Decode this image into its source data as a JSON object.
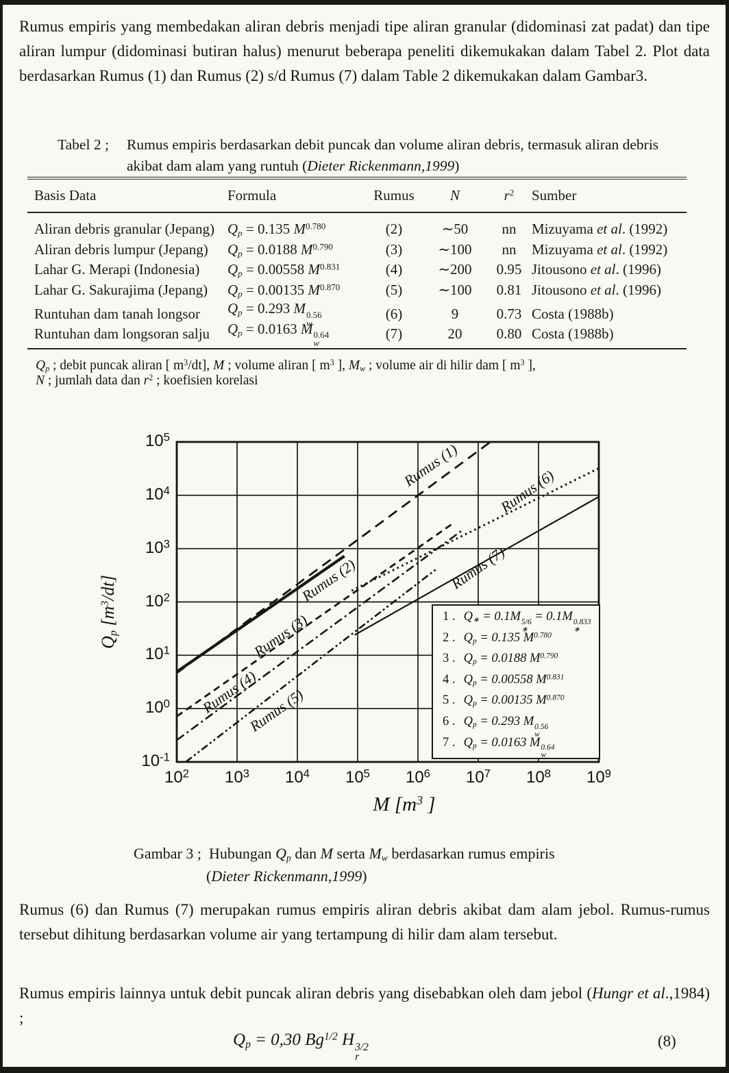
{
  "page": {
    "paragraph_1": "Rumus empiris yang membedakan aliran debris menjadi tipe aliran granular (didominasi zat padat) dan tipe aliran lumpur (didominasi butiran halus) menurut beberapa peneliti dikemukakan dalam Tabel 2.  Plot data berdasarkan Rumus (1) dan Rumus (2) s/d Rumus (7) dalam Table 2 dikemukakan dalam Gambar3.",
    "paragraph_2": "Rumus (6) dan Rumus (7) merupakan rumus empiris aliran debris akibat dam alam jebol. Rumus-rumus tersebut dihitung berdasarkan volume air yang tertampung di hilir dam alam tersebut.",
    "paragraph_3": "Rumus empiris lainnya untuk debit puncak aliran debris yang disebabkan oleh dam jebol (*Hungr et al*.,1984) ;",
    "equation_8": {
      "formula": "*Q*_{p} = 0,30 *Bg*^{1/2} *H*_{*r*}^{3/2}",
      "number": "(8)"
    }
  },
  "table": {
    "caption_label": "Tabel 2  ;",
    "caption_line1": "Rumus empiris berdasarkan debit puncak dan volume aliran debris, termasuk aliran debris",
    "caption_line2": "akibat dam alam yang runtuh (*Dieter Rickenmann,1999*)",
    "headers": [
      "Basis Data",
      "Formula",
      "Rumus",
      "*N*",
      "*r*^{2}",
      "Sumber"
    ],
    "rows": [
      {
        "basis": "Aliran debris granular (Jepang)",
        "formula": "*Q*_{*p*} = 0.135 *M*^{0.780}",
        "rumus": "(2)",
        "n": "∼50",
        "r2": "nn",
        "sumber": "Mizuyama *et al*. (1992)"
      },
      {
        "basis": "Aliran debris lumpur (Jepang)",
        "formula": "*Q*_{*p*} = 0.0188 *M*^{0.790}",
        "rumus": "(3)",
        "n": "∼100",
        "r2": "nn",
        "sumber": "Mizuyama *et al*. (1992)"
      },
      {
        "basis": "Lahar G. Merapi (Indonesia)",
        "formula": "*Q*_{*p*} = 0.00558 *M*^{0.831}",
        "rumus": "(4)",
        "n": "∼200",
        "r2": "0.95",
        "sumber": "Jitousono *et al*. (1996)"
      },
      {
        "basis": "Lahar G. Sakurajima (Jepang)",
        "formula": "*Q*_{*p*} = 0.00135 *M*^{0.870}",
        "rumus": "(5)",
        "n": "∼100",
        "r2": "0.81",
        "sumber": "Jitousono *et al*. (1996)"
      },
      {
        "basis": "Runtuhan dam  tanah longsor",
        "formula": "*Q*_{*p*} = 0.293 *M*_{*w*}^{0.56}",
        "rumus": "(6)",
        "n": "9",
        "r2": "0.73",
        "sumber": "Costa (1988b)"
      },
      {
        "basis": "Runtuhan dam longsoran salju",
        "formula": "*Q*_{*p*} = 0.0163 *M*_{*w*}^{0.64}",
        "rumus": "(7)",
        "n": "20",
        "r2": "0.80",
        "sumber": "Costa (1988b)"
      }
    ],
    "footnote_line1": "*Q*_{*p*} ; debit puncak aliran [ m^{3}/dt], *M* ; volume aliran [ m^{3} ], *M*_{*w*} ;  volume air di hilir dam [ m^{3} ],",
    "footnote_line2": "*N* ; jumlah  data dan *r*^{2} ;  koefisien korelasi"
  },
  "figure": {
    "caption_label": "Gambar 3 ;",
    "caption_line1": "Hubungan *Q*_{*p*} dan *M*  serta *M*_{*w*} berdasarkan rumus empiris",
    "caption_line2": "(*Dieter Rickenmann,1999*)"
  },
  "chart_data": {
    "type": "line",
    "title": "",
    "grid": true,
    "x_axis": {
      "label": "*M* [m^{3} ]",
      "scale": "log",
      "min": 100,
      "max": 1000000000,
      "ticks": [
        "10^{2}",
        "10^{3}",
        "10^{4}",
        "10^{5}",
        "10^{6}",
        "10^{7}",
        "10^{8}",
        "10^{9}"
      ]
    },
    "y_axis": {
      "label": "*Q*_{p}  [m^{3}/dt]",
      "scale": "log",
      "min": 0.1,
      "max": 100000,
      "ticks": [
        "10^{5}",
        "10^{4}",
        "10^{3}",
        "10^{2}",
        "10^{1}",
        "10^{0}",
        "10^{-1}"
      ]
    },
    "series": [
      {
        "name": "Rumus (2)",
        "coef": 0.135,
        "exponent": 0.78,
        "log_x_range": [
          2,
          4.78
        ],
        "style": "solid-thick",
        "label_log_pos": [
          4.52,
          2.36
        ],
        "points": [
          {
            "M": 100,
            "Q": 4.9
          },
          {
            "M": 60000,
            "Q": 722
          }
        ]
      },
      {
        "name": "Rumus (3)",
        "coef": 0.0188,
        "exponent": 0.79,
        "log_x_range": [
          2,
          6.6
        ],
        "style": "dash",
        "label_log_pos": [
          3.73,
          1.33
        ],
        "points": [
          {
            "M": 100,
            "Q": 0.72
          },
          {
            "M": 4000000,
            "Q": 3080
          }
        ]
      },
      {
        "name": "Rumus (4)",
        "coef": 0.00558,
        "exponent": 0.831,
        "log_x_range": [
          2,
          6.75
        ],
        "style": "dash-dot",
        "label_log_pos": [
          2.88,
          0.27
        ],
        "points": [
          {
            "M": 100,
            "Q": 0.26
          },
          {
            "M": 5600000,
            "Q": 2270
          }
        ]
      },
      {
        "name": "Rumus (5)",
        "coef": 0.00135,
        "exponent": 0.87,
        "log_x_range": [
          2.15,
          6.3
        ],
        "style": "dash-dot-dot",
        "label_log_pos": [
          3.66,
          -0.08
        ],
        "points": [
          {
            "M": 140,
            "Q": 0.1
          },
          {
            "M": 2000000,
            "Q": 409
          }
        ]
      },
      {
        "name": "Rumus (6)",
        "coef": 0.293,
        "exponent": 0.56,
        "log_x_range": [
          4.9,
          9
        ],
        "style": "dotted",
        "label_log_pos": [
          7.82,
          4.03
        ],
        "points": [
          {
            "M": 79000,
            "Q": 163
          },
          {
            "M": 1000000000,
            "Q": 32100
          }
        ]
      },
      {
        "name": "Rumus (7)",
        "coef": 0.0163,
        "exponent": 0.64,
        "log_x_range": [
          4.95,
          9
        ],
        "style": "solid",
        "label_log_pos": [
          7.0,
          2.6
        ],
        "points": [
          {
            "M": 89000,
            "Q": 24
          },
          {
            "M": 1000000000,
            "Q": 9380
          }
        ]
      },
      {
        "name": "Rumus (1)",
        "coef": 0.1,
        "exponent": 0.833,
        "log_x_range": [
          2,
          7.2
        ],
        "style": "long-dash",
        "label_log_pos": [
          6.22,
          4.52
        ],
        "points": [
          {
            "M": 100,
            "Q": 4.64
          },
          {
            "M": 15800000,
            "Q": 100000
          }
        ]
      }
    ],
    "legend_entries": [
      {
        "num": "1 .",
        "formula": "*Q*_{∗} = 0.1*M*_{∗}^{5/6} = 0.1*M*_{∗}^{0.833}"
      },
      {
        "num": "2 .",
        "formula": "*Q*_{*p*} = 0.135 *M*^{0.780}"
      },
      {
        "num": "3 .",
        "formula": "*Q*_{*p*} = 0.0188 *M*^{0.790}"
      },
      {
        "num": "4 .",
        "formula": "*Q*_{*p*} = 0.00558 *M*^{0.831}"
      },
      {
        "num": "5 .",
        "formula": "*Q*_{*p*} = 0.00135 *M*^{0.870}"
      },
      {
        "num": "6 .",
        "formula": "*Q*_{*p*} = 0.293 *M*_{*w*}^{0.56}"
      },
      {
        "num": "7 .",
        "formula": "*Q*_{*p*} = 0.0163 *M*_{*w*}^{0.64}"
      }
    ]
  }
}
